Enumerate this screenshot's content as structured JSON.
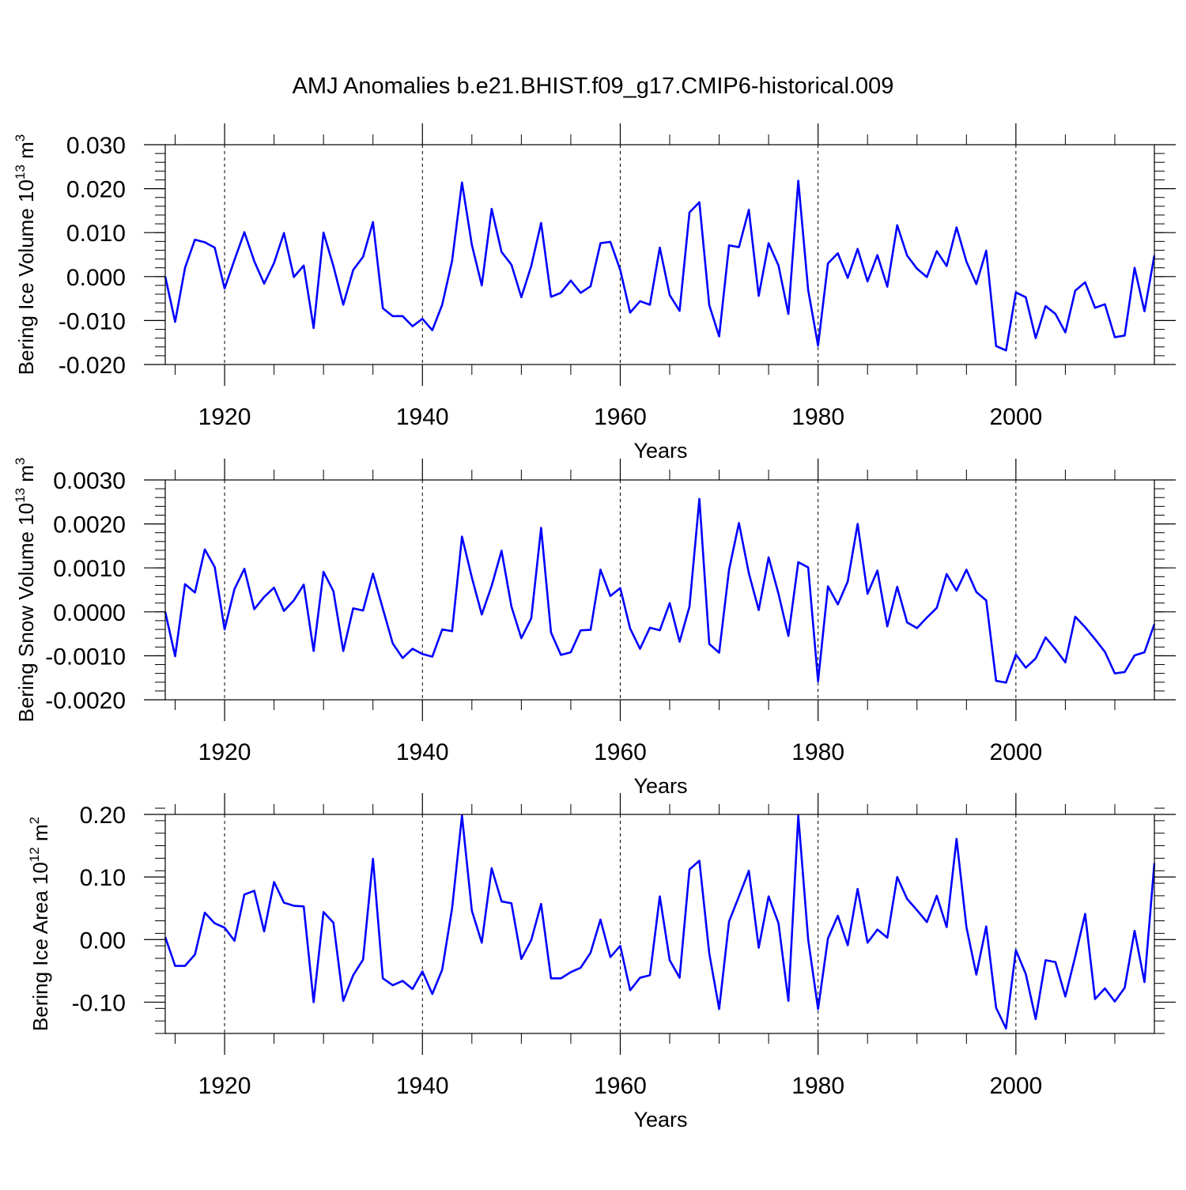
{
  "figure": {
    "title": "AMJ Anomalies b.e21.BHIST.f09_g17.CMIP6-historical.009",
    "line_color": "#0000ff"
  },
  "chart_data": [
    {
      "type": "line",
      "ylabel": "Bering Ice Volume 10",
      "ylabel_exp": "13",
      "ylabel_unit": "m",
      "ylabel_unit_exp": "3",
      "xlabel": "Years",
      "xlim": [
        1914,
        2014
      ],
      "ylim": [
        -0.02,
        0.03
      ],
      "yticks": [
        {
          "value": 0.03,
          "label": "0.030"
        },
        {
          "value": 0.02,
          "label": "0.020"
        },
        {
          "value": 0.01,
          "label": "0.010"
        },
        {
          "value": 0.0,
          "label": "0.000"
        },
        {
          "value": -0.01,
          "label": "-0.010"
        },
        {
          "value": -0.02,
          "label": "-0.020"
        }
      ],
      "y_minor_step": 0.002,
      "xticks": [
        {
          "value": 1920,
          "label": "1920"
        },
        {
          "value": 1940,
          "label": "1940"
        },
        {
          "value": 1960,
          "label": "1960"
        },
        {
          "value": 1980,
          "label": "1980"
        },
        {
          "value": 2000,
          "label": "2000"
        }
      ],
      "start_year": 1914,
      "series": [
        {
          "name": "Bering Ice Volume",
          "values": [
            0.0,
            -0.0103,
            0.002,
            0.0084,
            0.0078,
            0.0066,
            -0.0027,
            0.0038,
            0.0101,
            0.0035,
            -0.0016,
            0.0031,
            0.0099,
            -0.0001,
            0.0025,
            -0.0117,
            0.01,
            0.0024,
            -0.0064,
            0.0015,
            0.0045,
            0.0124,
            -0.0072,
            -0.009,
            -0.009,
            -0.0113,
            -0.0096,
            -0.0122,
            -0.0064,
            0.0036,
            0.0214,
            0.0072,
            -0.002,
            0.0154,
            0.0056,
            0.0027,
            -0.0047,
            0.0024,
            0.0122,
            -0.0046,
            -0.0037,
            -0.0009,
            -0.0037,
            -0.0022,
            0.0076,
            0.0079,
            0.0015,
            -0.0082,
            -0.0056,
            -0.0064,
            0.0066,
            -0.0042,
            -0.0078,
            0.0146,
            0.0169,
            -0.0065,
            -0.0136,
            0.0071,
            0.0067,
            0.0152,
            -0.0044,
            0.0076,
            0.0025,
            -0.0085,
            0.0218,
            -0.0031,
            -0.0157,
            0.003,
            0.0053,
            -0.0003,
            0.0063,
            -0.0011,
            0.0049,
            -0.0023,
            0.0117,
            0.0048,
            0.0018,
            -0.0001,
            0.0058,
            0.0024,
            0.0112,
            0.0034,
            -0.0017,
            0.0059,
            -0.0158,
            -0.0168,
            -0.0036,
            -0.0047,
            -0.014,
            -0.0067,
            -0.0085,
            -0.0127,
            -0.0032,
            -0.0013,
            -0.0071,
            -0.0063,
            -0.0138,
            -0.0134,
            0.002,
            -0.0079,
            0.0048
          ]
        }
      ]
    },
    {
      "type": "line",
      "ylabel": "Bering Snow Volume 10",
      "ylabel_exp": "13",
      "ylabel_unit": "m",
      "ylabel_unit_exp": "3",
      "xlabel": "Years",
      "xlim": [
        1914,
        2014
      ],
      "ylim": [
        -0.002,
        0.003
      ],
      "yticks": [
        {
          "value": 0.003,
          "label": "0.0030"
        },
        {
          "value": 0.002,
          "label": "0.0020"
        },
        {
          "value": 0.001,
          "label": "0.0010"
        },
        {
          "value": 0.0,
          "label": "0.0000"
        },
        {
          "value": -0.001,
          "label": "-0.0010"
        },
        {
          "value": -0.002,
          "label": "-0.0020"
        }
      ],
      "y_minor_step": 0.0002,
      "xticks": [
        {
          "value": 1920,
          "label": "1920"
        },
        {
          "value": 1940,
          "label": "1940"
        },
        {
          "value": 1960,
          "label": "1960"
        },
        {
          "value": 1980,
          "label": "1980"
        },
        {
          "value": 2000,
          "label": "2000"
        }
      ],
      "start_year": 1914,
      "series": [
        {
          "name": "Bering Snow Volume",
          "values": [
            0.0,
            -0.00101,
            0.00063,
            0.00044,
            0.00142,
            0.00102,
            -0.0004,
            0.00052,
            0.00098,
            6e-05,
            0.00034,
            0.00055,
            2e-05,
            0.00026,
            0.00062,
            -0.00089,
            0.00091,
            0.00047,
            -0.00089,
            8e-05,
            3e-05,
            0.00087,
            7e-05,
            -0.00072,
            -0.00105,
            -0.00084,
            -0.00096,
            -0.00102,
            -0.0004,
            -0.00044,
            0.00171,
            0.00078,
            -6e-05,
            0.00059,
            0.00139,
            0.00012,
            -0.0006,
            -0.00015,
            0.00191,
            -0.00047,
            -0.00098,
            -0.00092,
            -0.00042,
            -0.00041,
            0.00096,
            0.00036,
            0.00054,
            -0.00038,
            -0.00084,
            -0.00036,
            -0.00042,
            0.0002,
            -0.00068,
            0.00012,
            0.00257,
            -0.00073,
            -0.00093,
            0.00096,
            0.00202,
            0.00088,
            4e-05,
            0.00124,
            0.00041,
            -0.00055,
            0.00113,
            0.00101,
            -0.00158,
            0.00058,
            0.00017,
            0.00069,
            0.002,
            0.00041,
            0.00094,
            -0.00033,
            0.00057,
            -0.00024,
            -0.00037,
            -0.00013,
            9e-05,
            0.00086,
            0.00048,
            0.00096,
            0.00045,
            0.00026,
            -0.00157,
            -0.00161,
            -0.00097,
            -0.00127,
            -0.00106,
            -0.00058,
            -0.00085,
            -0.00115,
            -0.00011,
            -0.00035,
            -0.00062,
            -0.00091,
            -0.0014,
            -0.00137,
            -0.00099,
            -0.00092,
            -0.00028
          ]
        }
      ]
    },
    {
      "type": "line",
      "ylabel": "Bering Ice Area 10",
      "ylabel_exp": "12",
      "ylabel_unit": "m",
      "ylabel_unit_exp": "2",
      "xlabel": "Years",
      "xlim": [
        1914,
        2014
      ],
      "ylim": [
        -0.15,
        0.2
      ],
      "yticks": [
        {
          "value": 0.2,
          "label": "0.20"
        },
        {
          "value": 0.1,
          "label": "0.10"
        },
        {
          "value": 0.0,
          "label": "0.00"
        },
        {
          "value": -0.1,
          "label": "-0.10"
        }
      ],
      "y_minor_step": 0.02,
      "xticks": [
        {
          "value": 1920,
          "label": "1920"
        },
        {
          "value": 1940,
          "label": "1940"
        },
        {
          "value": 1960,
          "label": "1960"
        },
        {
          "value": 1980,
          "label": "1980"
        },
        {
          "value": 2000,
          "label": "2000"
        }
      ],
      "start_year": 1914,
      "series": [
        {
          "name": "Bering Ice Area",
          "values": [
            0.004,
            -0.042,
            -0.042,
            -0.024,
            0.043,
            0.026,
            0.019,
            -0.002,
            0.072,
            0.078,
            0.013,
            0.092,
            0.059,
            0.054,
            0.053,
            -0.1,
            0.044,
            0.027,
            -0.098,
            -0.057,
            -0.032,
            0.129,
            -0.062,
            -0.073,
            -0.066,
            -0.079,
            -0.051,
            -0.087,
            -0.048,
            0.05,
            0.198,
            0.046,
            -0.005,
            0.114,
            0.061,
            0.058,
            -0.031,
            -0.001,
            0.057,
            -0.062,
            -0.062,
            -0.052,
            -0.045,
            -0.021,
            0.032,
            -0.028,
            -0.01,
            -0.081,
            -0.061,
            -0.057,
            0.069,
            -0.033,
            -0.061,
            0.112,
            0.126,
            -0.022,
            -0.111,
            0.029,
            0.069,
            0.11,
            -0.013,
            0.069,
            0.026,
            -0.098,
            0.198,
            0.0,
            -0.111,
            0.002,
            0.038,
            -0.009,
            0.081,
            -0.005,
            0.016,
            0.003,
            0.1,
            0.065,
            0.047,
            0.028,
            0.07,
            0.02,
            0.161,
            0.02,
            -0.056,
            0.021,
            -0.109,
            -0.142,
            -0.017,
            -0.055,
            -0.127,
            -0.033,
            -0.036,
            -0.091,
            -0.027,
            0.041,
            -0.095,
            -0.078,
            -0.099,
            -0.077,
            0.014,
            -0.068,
            0.122
          ]
        }
      ]
    }
  ]
}
